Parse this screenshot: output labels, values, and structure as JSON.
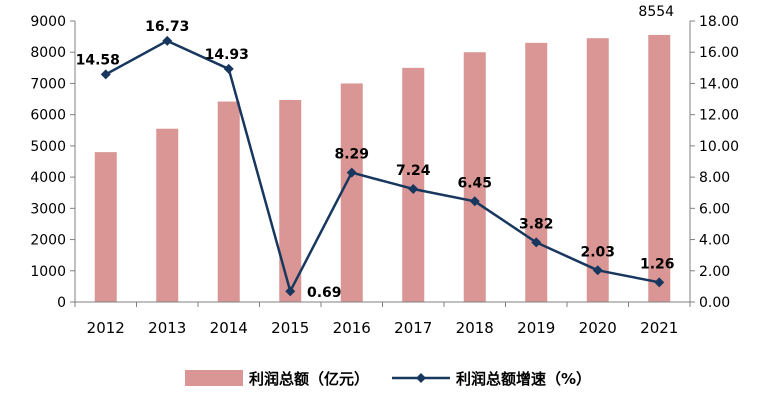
{
  "chart_data": {
    "type": "bar",
    "categories": [
      "2012",
      "2013",
      "2014",
      "2015",
      "2016",
      "2017",
      "2018",
      "2019",
      "2020",
      "2021"
    ],
    "series": [
      {
        "name": "利润总额（亿元）",
        "type": "bar",
        "axis": "left",
        "color": "#d99694",
        "values": [
          4800,
          5550,
          6420,
          6470,
          7000,
          7500,
          8000,
          8300,
          8450,
          8554
        ],
        "data_labels": [
          "",
          "",
          "",
          "",
          "",
          "",
          "",
          "",
          "",
          "8554"
        ]
      },
      {
        "name": "利润总额增速（%）",
        "type": "line",
        "axis": "right",
        "color": "#17375e",
        "marker": "diamond",
        "values": [
          14.58,
          16.73,
          14.93,
          0.69,
          8.29,
          7.24,
          6.45,
          3.82,
          2.03,
          1.26
        ],
        "data_labels": [
          "14.58",
          "16.73",
          "14.93",
          "0.69",
          "8.29",
          "7.24",
          "6.45",
          "3.82",
          "2.03",
          "1.26"
        ]
      }
    ],
    "left_axis": {
      "ylim": [
        0,
        9000
      ],
      "ticks": [
        "0",
        "1000",
        "2000",
        "3000",
        "4000",
        "5000",
        "6000",
        "7000",
        "8000",
        "9000"
      ]
    },
    "right_axis": {
      "ylim": [
        0,
        18
      ],
      "ticks": [
        "0.00",
        "2.00",
        "4.00",
        "6.00",
        "8.00",
        "10.00",
        "12.00",
        "14.00",
        "16.00",
        "18.00"
      ]
    },
    "legend_position": "bottom",
    "grid": false
  }
}
